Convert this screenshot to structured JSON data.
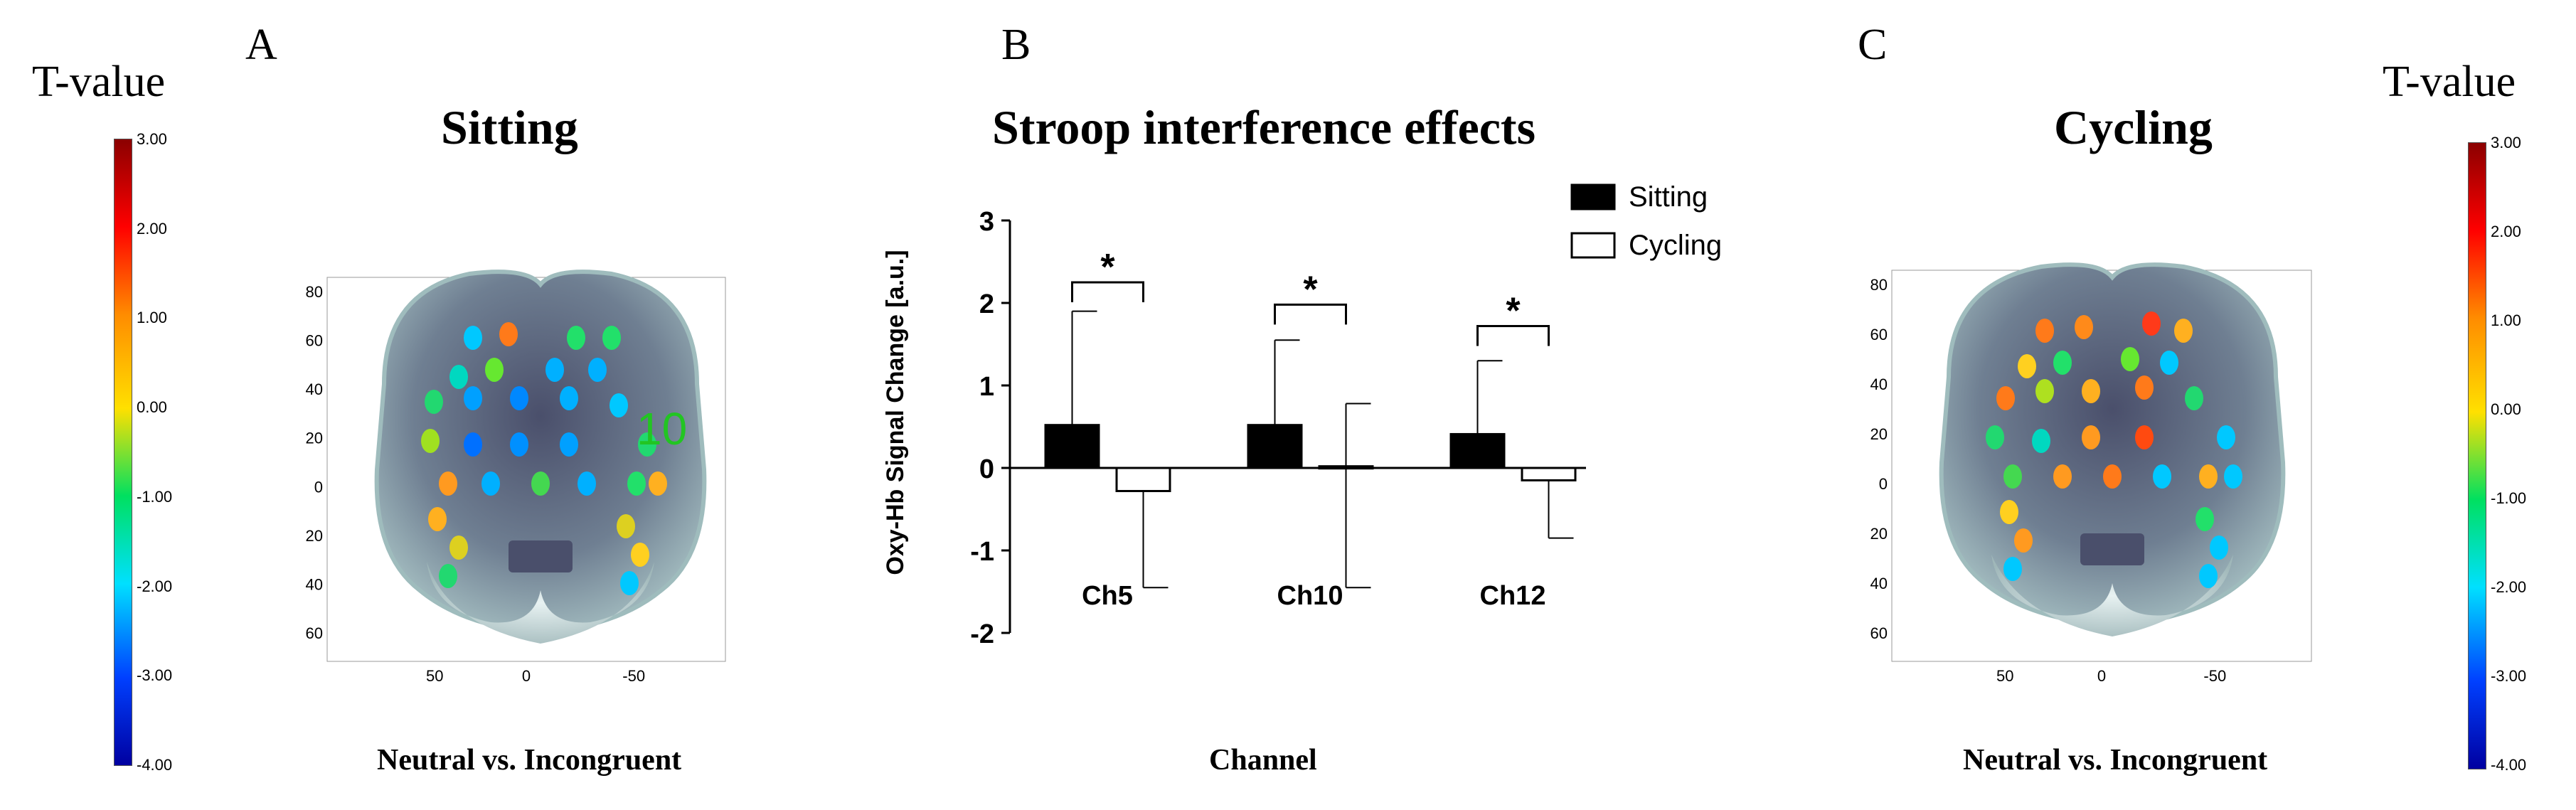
{
  "panels": {
    "a": {
      "letter": "A",
      "title": "Sitting",
      "xlabel": "Neutral vs. Incongruent",
      "channel_label": "10"
    },
    "b": {
      "letter": "B",
      "title": "Stroop interference effects",
      "xlabel": "Channel"
    },
    "c": {
      "letter": "C",
      "title": "Cycling",
      "xlabel": "Neutral vs. Incongruent"
    }
  },
  "colorbar": {
    "label": "T-value",
    "ticks": [
      "3.00",
      "2.00",
      "1.00",
      "0.00",
      "-1.00",
      "-2.00",
      "-3.00",
      "-4.00"
    ]
  },
  "brain_axes": {
    "a": {
      "y_ticks": [
        "80",
        "60",
        "40",
        "20",
        "0",
        "-20",
        "-40",
        "-60"
      ],
      "x_ticks": [
        "50",
        "0",
        "-50"
      ]
    },
    "c": {
      "y_ticks": [
        "80",
        "60",
        "40",
        "20",
        "0",
        "-20",
        "-40",
        "-60"
      ],
      "x_ticks": [
        "50",
        "0",
        "-50"
      ]
    }
  },
  "chart_data": {
    "type": "bar",
    "title": "Stroop interference effects",
    "xlabel": "Channel",
    "ylabel": "Oxy-Hb Signal Change [a.u.]",
    "ylim": [
      -2,
      3
    ],
    "y_ticks": [
      3,
      2,
      1,
      0,
      -1,
      -2
    ],
    "categories": [
      "Ch5",
      "Ch10",
      "Ch12"
    ],
    "series": [
      {
        "name": "Sitting",
        "values": [
          0.52,
          0.52,
          0.41
        ],
        "error_upper": [
          1.9,
          1.55,
          1.3
        ],
        "fill": "#000000"
      },
      {
        "name": "Cycling",
        "values": [
          -0.28,
          0.02,
          -0.15
        ],
        "error_lower": [
          -1.45,
          -1.45,
          -0.85
        ],
        "error_upper": [
          -0.28,
          0.78,
          -0.15
        ],
        "fill": "#ffffff"
      }
    ],
    "significance": [
      "*",
      "*",
      "*"
    ],
    "legend_position": "top-right"
  }
}
